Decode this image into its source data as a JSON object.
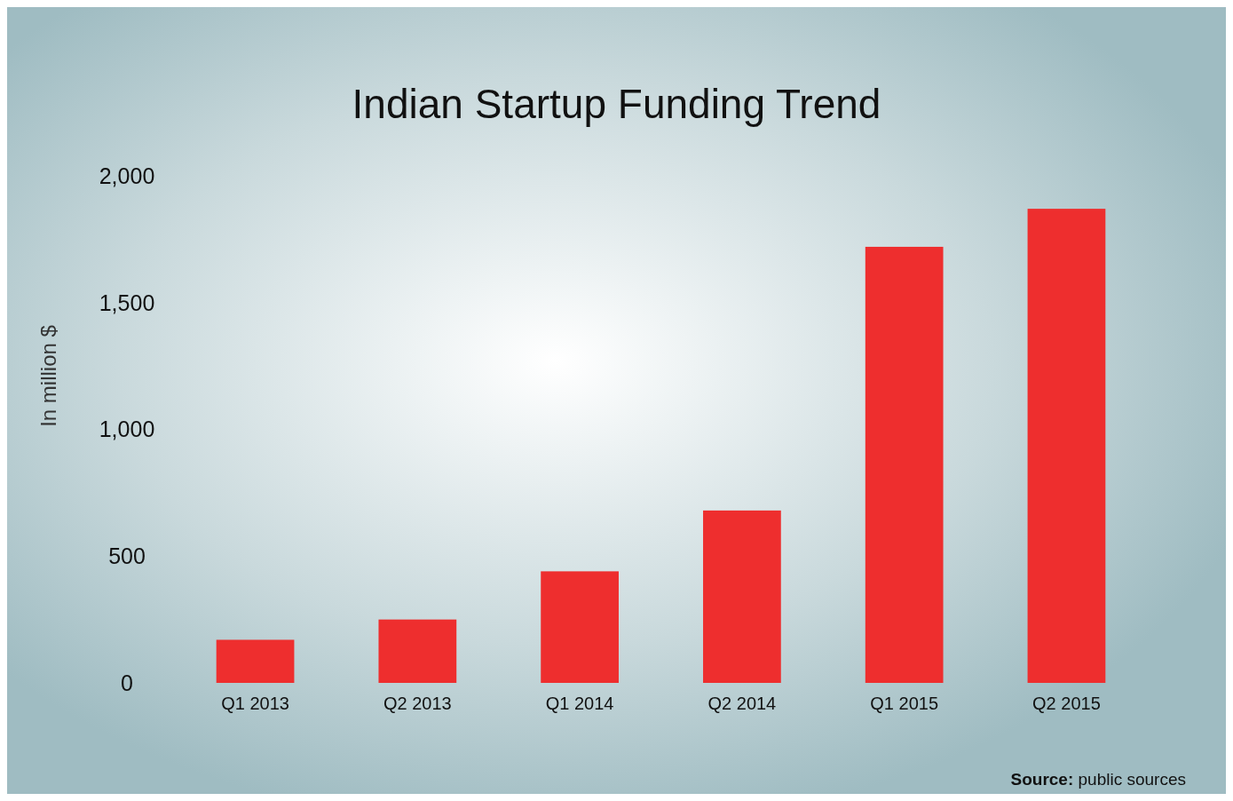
{
  "chart_data": {
    "type": "bar",
    "title": "Indian Startup Funding Trend",
    "ylabel": "In million $",
    "categories": [
      "Q1 2013",
      "Q2 2013",
      "Q1 2014",
      "Q2 2014",
      "Q1 2015",
      "Q2 2015"
    ],
    "values": [
      170,
      250,
      440,
      680,
      1720,
      1870
    ],
    "color": "#ee2e2e",
    "ylim": [
      0,
      2000
    ],
    "yticks": [
      0,
      500,
      {
        "value": 1000,
        "label": "1,000"
      },
      {
        "value": 1500,
        "label": "1,500"
      },
      {
        "value": 2000,
        "label": "2,000"
      }
    ],
    "annotations": [
      "Source: public sources"
    ]
  }
}
